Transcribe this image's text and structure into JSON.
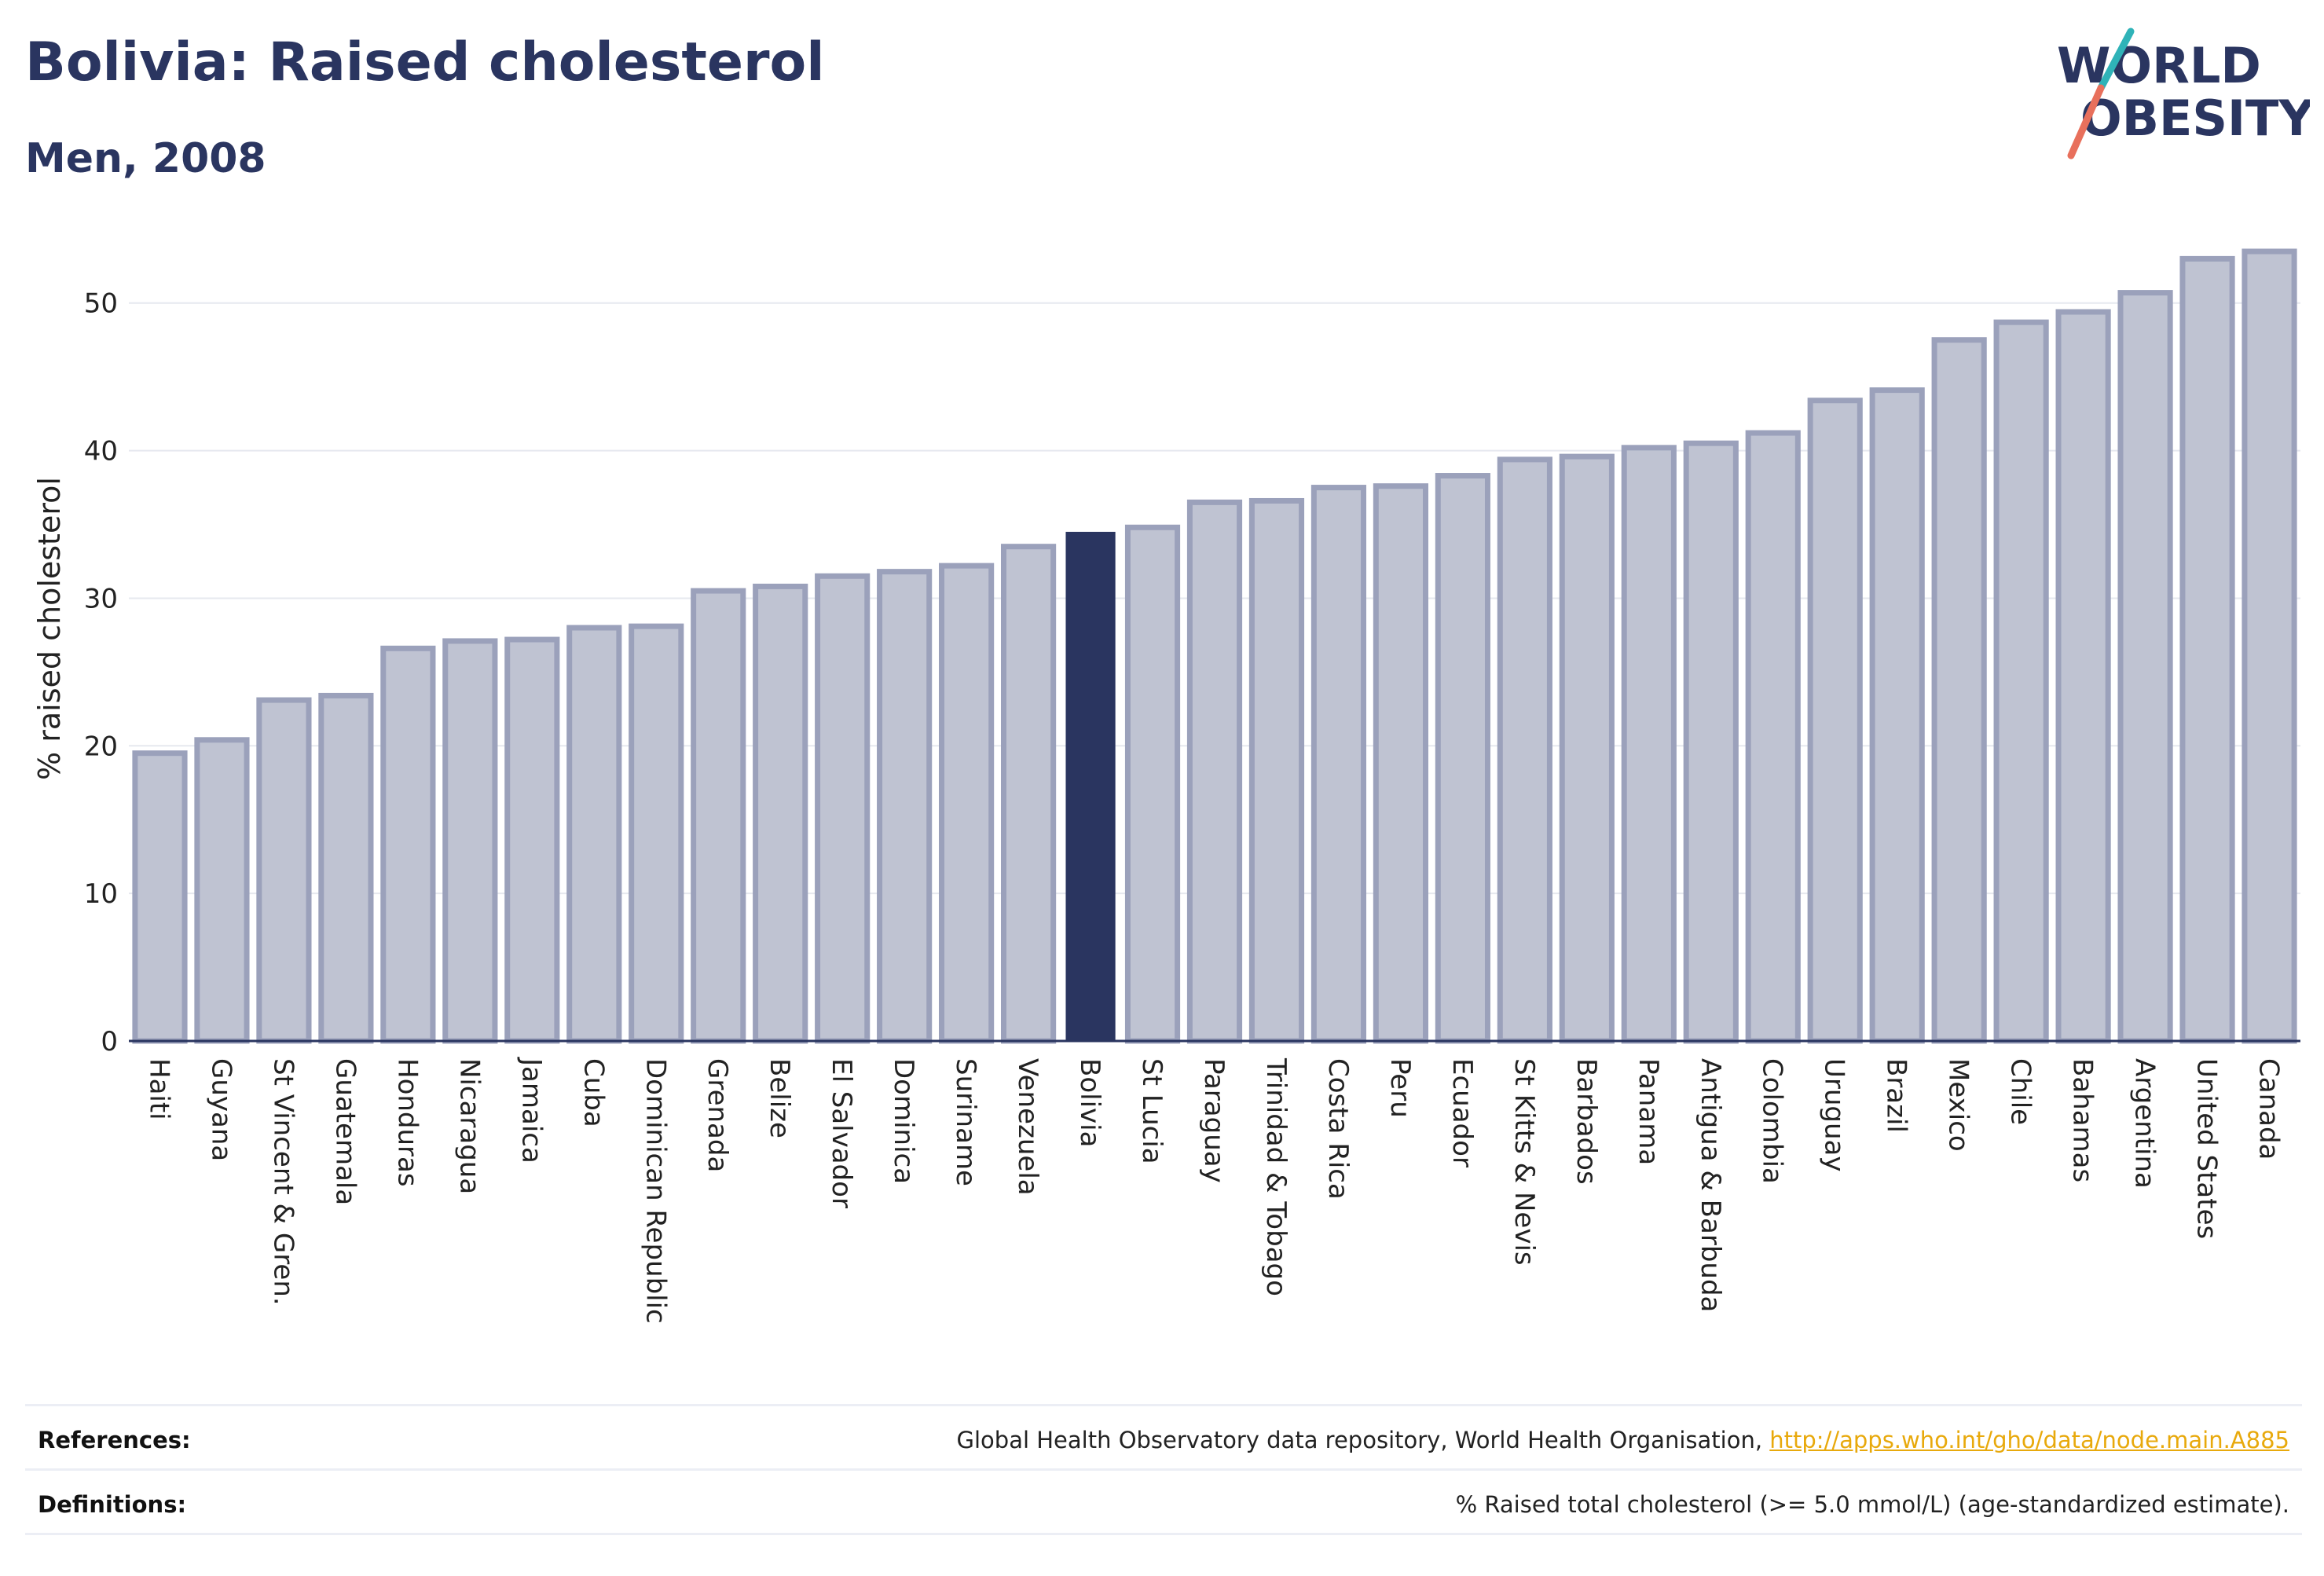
{
  "header": {
    "title": "Bolivia: Raised cholesterol",
    "subtitle": "Men, 2008"
  },
  "logo": {
    "line1": "WORLD",
    "line2": "OBESITY",
    "slash_top_color": "#2fb3b8",
    "slash_bottom_color": "#e8705c"
  },
  "footer": {
    "references_label": "References:",
    "references_text": "Global Health Observatory data repository, World Health Organisation,",
    "references_link": "http://apps.who.int/gho/data/node.main.A885",
    "definitions_label": "Definitions:",
    "definitions_text": "% Raised total cholesterol (>= 5.0 mmol/L) (age-standardized estimate)."
  },
  "chart_data": {
    "type": "bar",
    "title": "Bolivia: Raised cholesterol",
    "subtitle": "Men, 2008",
    "ylabel": "% raised cholesterol",
    "xlabel": "",
    "ylim": [
      0,
      55
    ],
    "yticks": [
      0,
      10,
      20,
      30,
      40,
      50
    ],
    "grid": true,
    "highlight": "Bolivia",
    "colors": {
      "bar": "#bfc3d2",
      "bar_border": "#9ba1bb",
      "highlight": "#2a3560"
    },
    "categories": [
      "Haiti",
      "Guyana",
      "St Vincent & Gren.",
      "Guatemala",
      "Honduras",
      "Nicaragua",
      "Jamaica",
      "Cuba",
      "Dominican Republic",
      "Grenada",
      "Belize",
      "El Salvador",
      "Dominica",
      "Suriname",
      "Venezuela",
      "Bolivia",
      "St Lucia",
      "Paraguay",
      "Trinidad & Tobago",
      "Costa Rica",
      "Peru",
      "Ecuador",
      "St Kitts & Nevis",
      "Barbados",
      "Panama",
      "Antigua & Barbuda",
      "Colombia",
      "Uruguay",
      "Brazil",
      "Mexico",
      "Chile",
      "Bahamas",
      "Argentina",
      "United States",
      "Canada"
    ],
    "values": [
      19.5,
      20.4,
      23.1,
      23.4,
      26.6,
      27.1,
      27.2,
      28.0,
      28.1,
      30.5,
      30.8,
      31.5,
      31.8,
      32.2,
      33.5,
      34.5,
      34.8,
      36.5,
      36.6,
      37.5,
      37.6,
      38.3,
      39.4,
      39.6,
      40.2,
      40.5,
      41.2,
      43.4,
      44.1,
      47.5,
      48.7,
      49.4,
      50.7,
      53.0,
      53.5
    ]
  }
}
